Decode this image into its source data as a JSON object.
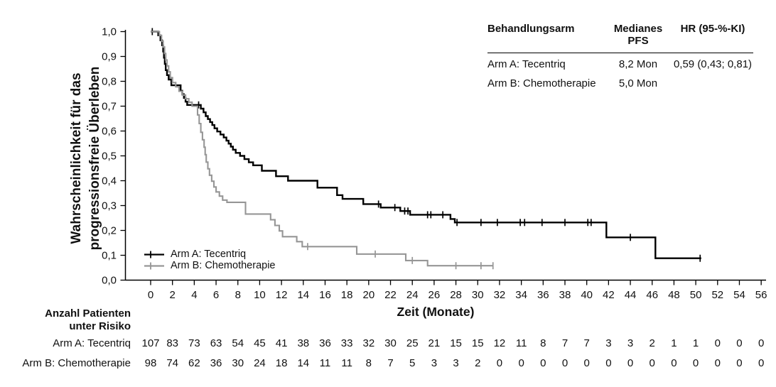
{
  "figure": {
    "y_axis": {
      "title_line1": "Wahrscheinlichkeit für das",
      "title_line2": "progressionsfreie Überleben",
      "min": 0.0,
      "max": 1.0,
      "step": 0.1,
      "tick_labels": [
        "0,0",
        "0,1",
        "0,2",
        "0,3",
        "0,4",
        "0,5",
        "0,6",
        "0,7",
        "0,8",
        "0,9",
        "1,0"
      ]
    },
    "x_axis": {
      "title": "Zeit (Monate)",
      "min": 0,
      "max": 56,
      "step": 2,
      "ticks": [
        0,
        2,
        4,
        6,
        8,
        10,
        12,
        14,
        16,
        18,
        20,
        22,
        24,
        26,
        28,
        30,
        32,
        34,
        36,
        38,
        40,
        42,
        44,
        46,
        48,
        50,
        52,
        54,
        56
      ]
    },
    "legend": [
      {
        "label": "Arm A: Tecentriq",
        "color": "#000000"
      },
      {
        "label": "Arm B: Chemotherapie",
        "color": "#969696"
      }
    ],
    "stats_table": {
      "headers": [
        "Behandlungsarm",
        "Medianes PFS",
        "HR (95-%-KI)"
      ],
      "rows": [
        {
          "arm": "Arm A: Tecentriq",
          "pfs": "8,2 Mon",
          "hr": "0,59 (0,43; 0,81)"
        },
        {
          "arm": "Arm B: Chemotherapie",
          "pfs": "5,0 Mon",
          "hr": ""
        }
      ]
    },
    "risk_table": {
      "header_line1": "Anzahl Patienten",
      "header_line2": "unter Risiko",
      "rows": [
        {
          "label": "Arm A: Tecentriq",
          "values": [
            107,
            83,
            73,
            63,
            54,
            45,
            41,
            38,
            36,
            33,
            32,
            30,
            25,
            21,
            15,
            15,
            12,
            11,
            8,
            7,
            7,
            3,
            3,
            2,
            1,
            1,
            0,
            0,
            0
          ]
        },
        {
          "label": "Arm B: Chemotherapie",
          "values": [
            98,
            74,
            62,
            36,
            30,
            24,
            18,
            14,
            11,
            11,
            8,
            7,
            5,
            3,
            3,
            2,
            0,
            0,
            0,
            0,
            0,
            0,
            0,
            0,
            0,
            0,
            0,
            0,
            0
          ]
        }
      ]
    }
  },
  "chart_data": {
    "type": "line",
    "subtype": "kaplan-meier-step",
    "title": "",
    "xlabel": "Zeit (Monate)",
    "ylabel": "Wahrscheinlichkeit für das progressionsfreie Überleben",
    "xlim": [
      0,
      56
    ],
    "ylim": [
      0.0,
      1.0
    ],
    "grid": false,
    "legend_position": "lower-left-inside",
    "series": [
      {
        "name": "Arm A: Tecentriq",
        "color": "#000000",
        "stroke_width": 2.4,
        "median_pfs": "8,2 Mon",
        "hr_95ki": "0,59 (0,43; 0,81)",
        "end_month": 50.5,
        "steps": [
          [
            0,
            1.0
          ],
          [
            0.7,
            0.985
          ],
          [
            0.9,
            0.965
          ],
          [
            1.05,
            0.945
          ],
          [
            1.15,
            0.92
          ],
          [
            1.22,
            0.895
          ],
          [
            1.3,
            0.87
          ],
          [
            1.38,
            0.845
          ],
          [
            1.5,
            0.825
          ],
          [
            1.65,
            0.807
          ],
          [
            1.9,
            0.784
          ],
          [
            2.75,
            0.762
          ],
          [
            2.9,
            0.748
          ],
          [
            3.05,
            0.733
          ],
          [
            3.2,
            0.718
          ],
          [
            3.35,
            0.705
          ],
          [
            4.6,
            0.69
          ],
          [
            4.85,
            0.675
          ],
          [
            5.05,
            0.66
          ],
          [
            5.25,
            0.648
          ],
          [
            5.45,
            0.636
          ],
          [
            5.65,
            0.624
          ],
          [
            5.85,
            0.611
          ],
          [
            6.1,
            0.598
          ],
          [
            6.4,
            0.586
          ],
          [
            6.7,
            0.574
          ],
          [
            6.95,
            0.561
          ],
          [
            7.15,
            0.549
          ],
          [
            7.35,
            0.537
          ],
          [
            7.55,
            0.525
          ],
          [
            7.8,
            0.512
          ],
          [
            8.2,
            0.5
          ],
          [
            8.6,
            0.487
          ],
          [
            9.0,
            0.474
          ],
          [
            9.4,
            0.462
          ],
          [
            10.2,
            0.44
          ],
          [
            11.5,
            0.418
          ],
          [
            12.6,
            0.4
          ],
          [
            15.3,
            0.372
          ],
          [
            17.1,
            0.342
          ],
          [
            17.6,
            0.327
          ],
          [
            19.5,
            0.306
          ],
          [
            21.1,
            0.292
          ],
          [
            22.9,
            0.278
          ],
          [
            23.8,
            0.263
          ],
          [
            27.5,
            0.246
          ],
          [
            27.9,
            0.232
          ],
          [
            41.8,
            0.172
          ],
          [
            46.3,
            0.088
          ]
        ],
        "censors": [
          [
            0.15,
            1.0
          ],
          [
            4.4,
            0.705
          ],
          [
            20.9,
            0.306
          ],
          [
            22.4,
            0.292
          ],
          [
            23.3,
            0.278
          ],
          [
            23.6,
            0.278
          ],
          [
            25.4,
            0.263
          ],
          [
            25.7,
            0.263
          ],
          [
            26.8,
            0.263
          ],
          [
            28.1,
            0.232
          ],
          [
            30.3,
            0.232
          ],
          [
            31.8,
            0.232
          ],
          [
            33.9,
            0.232
          ],
          [
            34.3,
            0.232
          ],
          [
            35.9,
            0.232
          ],
          [
            38.0,
            0.232
          ],
          [
            40.1,
            0.232
          ],
          [
            40.4,
            0.232
          ],
          [
            44.0,
            0.172
          ],
          [
            50.4,
            0.088
          ]
        ]
      },
      {
        "name": "Arm B: Chemotherapie",
        "color": "#969696",
        "stroke_width": 2.1,
        "median_pfs": "5,0 Mon",
        "end_month": 31.4,
        "steps": [
          [
            0,
            1.0
          ],
          [
            0.8,
            0.985
          ],
          [
            1.0,
            0.962
          ],
          [
            1.15,
            0.938
          ],
          [
            1.28,
            0.912
          ],
          [
            1.38,
            0.886
          ],
          [
            1.5,
            0.862
          ],
          [
            1.65,
            0.838
          ],
          [
            1.8,
            0.815
          ],
          [
            2.0,
            0.795
          ],
          [
            2.3,
            0.778
          ],
          [
            2.6,
            0.76
          ],
          [
            2.9,
            0.745
          ],
          [
            3.2,
            0.73
          ],
          [
            3.5,
            0.716
          ],
          [
            3.8,
            0.7
          ],
          [
            4.3,
            0.665
          ],
          [
            4.45,
            0.63
          ],
          [
            4.6,
            0.595
          ],
          [
            4.75,
            0.565
          ],
          [
            4.9,
            0.535
          ],
          [
            5.0,
            0.505
          ],
          [
            5.1,
            0.475
          ],
          [
            5.25,
            0.448
          ],
          [
            5.4,
            0.422
          ],
          [
            5.6,
            0.398
          ],
          [
            5.8,
            0.375
          ],
          [
            6.0,
            0.355
          ],
          [
            6.3,
            0.338
          ],
          [
            6.6,
            0.322
          ],
          [
            7.0,
            0.313
          ],
          [
            8.7,
            0.266
          ],
          [
            11.0,
            0.243
          ],
          [
            11.4,
            0.22
          ],
          [
            11.8,
            0.198
          ],
          [
            12.1,
            0.175
          ],
          [
            13.4,
            0.155
          ],
          [
            13.9,
            0.135
          ],
          [
            18.9,
            0.105
          ],
          [
            23.4,
            0.079
          ],
          [
            25.4,
            0.058
          ]
        ],
        "censors": [
          [
            14.4,
            0.135
          ],
          [
            20.6,
            0.105
          ],
          [
            24.0,
            0.079
          ],
          [
            28.0,
            0.058
          ],
          [
            30.3,
            0.058
          ],
          [
            31.4,
            0.058
          ]
        ]
      }
    ]
  }
}
